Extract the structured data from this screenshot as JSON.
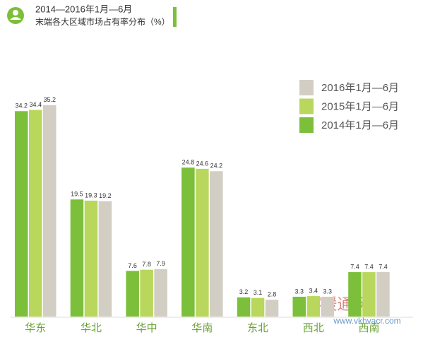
{
  "chart_data": {
    "type": "bar",
    "title": "2014—2016年1月—6月",
    "subtitle": "末端各大区域市场占有率分布（%）",
    "categories": [
      "华东",
      "华北",
      "华中",
      "华南",
      "东北",
      "西北",
      "西南"
    ],
    "series": [
      {
        "name": "2014年1月—6月",
        "color": "#7cbf3a",
        "values": [
          34.2,
          19.5,
          7.6,
          24.8,
          3.2,
          3.3,
          7.4
        ]
      },
      {
        "name": "2015年1月—6月",
        "color": "#b8d75c",
        "values": [
          34.4,
          19.3,
          7.8,
          24.6,
          3.1,
          3.4,
          7.4
        ]
      },
      {
        "name": "2016年1月—6月",
        "color": "#d2cec3",
        "values": [
          35.2,
          19.2,
          7.9,
          24.2,
          2.8,
          3.3,
          7.4
        ]
      }
    ],
    "legend": "top-right"
  },
  "watermark": {
    "brand": "V客暖通网",
    "url": "www.vkhvacr.com"
  }
}
